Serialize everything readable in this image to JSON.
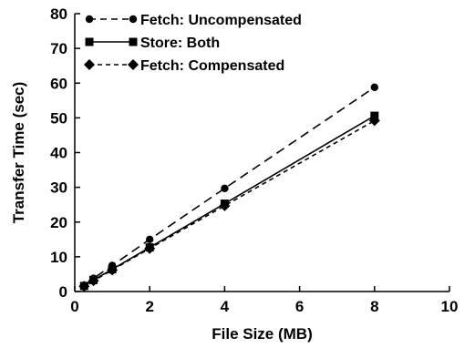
{
  "chart_data": {
    "type": "line",
    "title": "",
    "xlabel": "File Size (MB)",
    "ylabel": "Transfer Time (sec)",
    "xlim": [
      0,
      10
    ],
    "ylim": [
      0,
      80
    ],
    "xticks": [
      "0",
      "2",
      "4",
      "6",
      "8",
      "10"
    ],
    "yticks": [
      "0",
      "10",
      "20",
      "30",
      "40",
      "50",
      "60",
      "70",
      "80"
    ],
    "grid": false,
    "legend_position": "top-left",
    "series": [
      {
        "name": "Fetch: Uncompensated",
        "marker": "circle",
        "line_style": "long-dash",
        "color": "#000000",
        "x": [
          0.25,
          0.5,
          1,
          2,
          4,
          8
        ],
        "y": [
          1.8,
          3.8,
          7.5,
          15.0,
          29.7,
          58.8
        ]
      },
      {
        "name": "Store: Both",
        "marker": "square",
        "line_style": "solid",
        "color": "#000000",
        "x": [
          0.25,
          0.5,
          1,
          2,
          4,
          8
        ],
        "y": [
          1.6,
          3.3,
          6.4,
          12.7,
          25.3,
          50.6
        ]
      },
      {
        "name": "Fetch: Compensated",
        "marker": "diamond",
        "line_style": "short-dash",
        "color": "#000000",
        "x": [
          0.25,
          0.5,
          1,
          2,
          4,
          8
        ],
        "y": [
          1.5,
          3.1,
          6.2,
          12.4,
          24.7,
          49.2
        ]
      }
    ]
  }
}
